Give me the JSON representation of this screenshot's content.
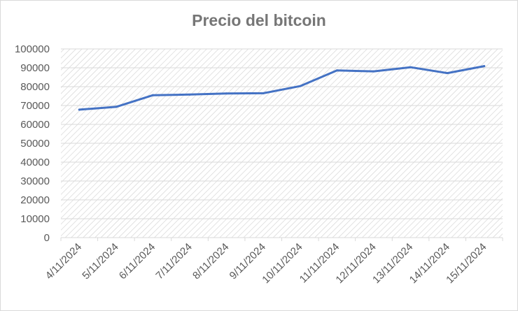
{
  "chart_data": {
    "type": "line",
    "title": "Precio del bitcoin",
    "xlabel": "",
    "ylabel": "",
    "categories": [
      "4/11/2024",
      "5/11/2024",
      "6/11/2024",
      "7/11/2024",
      "8/11/2024",
      "9/11/2024",
      "10/11/2024",
      "11/11/2024",
      "12/11/2024",
      "13/11/2024",
      "14/11/2024",
      "15/11/2024"
    ],
    "series": [
      {
        "values": [
          67800,
          69300,
          75500,
          75800,
          76400,
          76500,
          80300,
          88600,
          88100,
          90300,
          87200,
          90900
        ],
        "color": "#4472c4"
      }
    ],
    "ylim": [
      0,
      100000
    ],
    "yticks": [
      "0",
      "10000",
      "20000",
      "30000",
      "40000",
      "50000",
      "60000",
      "70000",
      "80000",
      "90000",
      "100000"
    ],
    "grid": true,
    "legend": "none"
  }
}
